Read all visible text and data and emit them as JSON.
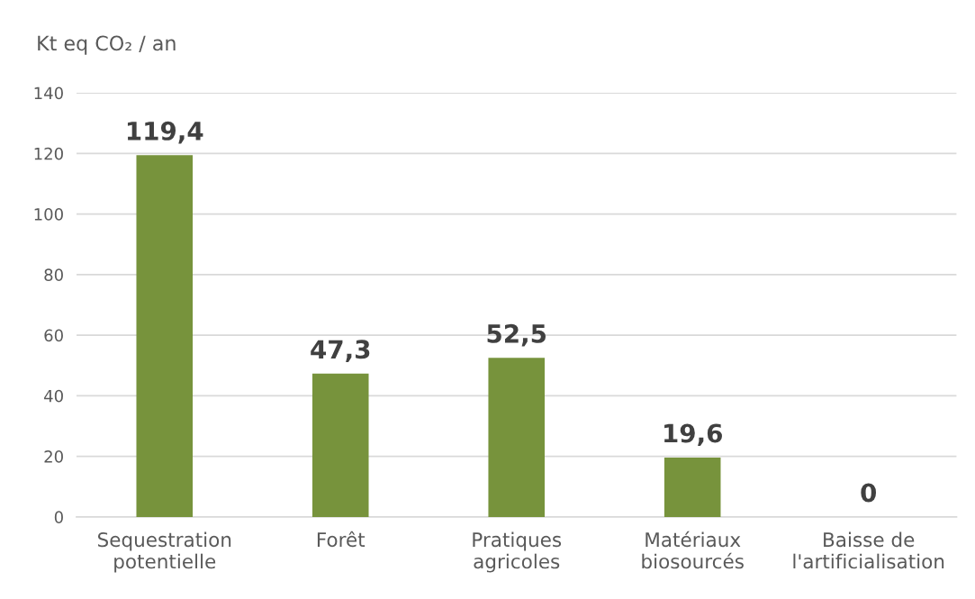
{
  "chart_data": {
    "type": "bar",
    "ylabel": "Kt eq CO₂ / an",
    "categories": [
      "Sequestration potentielle",
      "Forêt",
      "Pratiques agricoles",
      "Matériaux biosourcés",
      "Baisse de l'artificialisation"
    ],
    "values": [
      119.4,
      47.3,
      52.5,
      19.6,
      0
    ],
    "color": "#77933c",
    "value_labels": [
      "119,4",
      "47,3",
      "52,5",
      "19,6",
      "0"
    ],
    "ylim": [
      0,
      140
    ],
    "yticks": [
      0,
      20,
      40,
      60,
      80,
      100,
      120,
      140
    ],
    "grid": "y"
  }
}
